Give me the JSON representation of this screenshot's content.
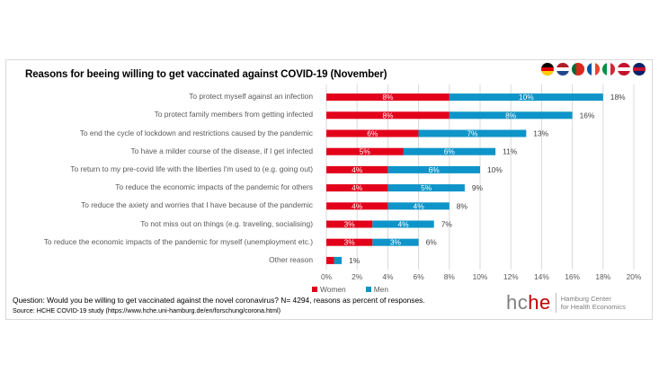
{
  "title": "Reasons for beeing willing to get vaccinated against COVID-19 (November)",
  "flags": [
    {
      "name": "germany",
      "stripes": "h",
      "colors": [
        "#000000",
        "#dd0000",
        "#ffce00"
      ]
    },
    {
      "name": "netherlands",
      "stripes": "h",
      "colors": [
        "#ae1c28",
        "#ffffff",
        "#21468b"
      ]
    },
    {
      "name": "portugal",
      "stripes": "v",
      "colors": [
        "#046a38",
        "#da291c",
        "#da291c"
      ]
    },
    {
      "name": "france",
      "stripes": "v",
      "colors": [
        "#0055a4",
        "#ffffff",
        "#ef4135"
      ]
    },
    {
      "name": "italy",
      "stripes": "v",
      "colors": [
        "#009246",
        "#ffffff",
        "#ce2b37"
      ]
    },
    {
      "name": "denmark",
      "stripes": "h",
      "colors": [
        "#c8102e",
        "#ffffff",
        "#c8102e"
      ]
    },
    {
      "name": "uk",
      "stripes": "h",
      "colors": [
        "#012169",
        "#c8102e",
        "#012169"
      ]
    }
  ],
  "colors": {
    "women": "#e2001a",
    "men": "#0e94c8",
    "grid": "#d9d9d9"
  },
  "chart_data": {
    "type": "bar",
    "orientation": "horizontal",
    "stacked": true,
    "title": "Reasons for beeing willing to get vaccinated against COVID-19 (November)",
    "categories": [
      "To protect myself against an infection",
      "To protect family members from getting infected",
      "To end the cycle of lockdown and restrictions caused by the pandemic",
      "To have a milder course of the disease, if I get infected",
      "To return to my pre-covid life with the liberties I'm used to (e.g. going out)",
      "To reduce the economic impacts of the pandemic for others",
      "To reduce the axiety and worries that I have because of the pandemic",
      "To not miss out on things (e.g. traveling, socialising)",
      "To reduce the economic impacts of the pandemic for myself (unemployment etc.)",
      "Other reason"
    ],
    "series": [
      {
        "name": "Women",
        "values": [
          8,
          8,
          6,
          5,
          4,
          4,
          4,
          3,
          3,
          0.5
        ],
        "labels": [
          "8%",
          "8%",
          "6%",
          "5%",
          "4%",
          "4%",
          "4%",
          "3%",
          "3%",
          ""
        ]
      },
      {
        "name": "Men",
        "values": [
          10,
          8,
          7,
          6,
          6,
          5,
          4,
          4,
          3,
          0.5
        ],
        "labels": [
          "10%",
          "8%",
          "7%",
          "6%",
          "6%",
          "5%",
          "4%",
          "4%",
          "3%",
          ""
        ]
      }
    ],
    "totals": [
      18,
      16,
      13,
      11,
      10,
      9,
      8,
      7,
      6,
      1
    ],
    "total_labels": [
      "18%",
      "16%",
      "13%",
      "11%",
      "10%",
      "9%",
      "8%",
      "7%",
      "6%",
      "1%"
    ],
    "xlabel": "",
    "ylabel": "",
    "xlim": [
      0,
      20
    ],
    "xticks": [
      "0%",
      "2%",
      "4%",
      "6%",
      "8%",
      "10%",
      "12%",
      "14%",
      "16%",
      "18%",
      "20%"
    ],
    "grid": true,
    "legend": {
      "position": "bottom-left",
      "entries": [
        "Women",
        "Men"
      ]
    }
  },
  "footer": {
    "question": "Question: Would you be willing to get vaccinated against the novel coronavirus? N= 4294, reasons as percent of responses.",
    "source": "Source: HCHE COVID-19 study (https://www.hche.uni-hamburg.de/en/forschung/corona.html)"
  },
  "logo": {
    "hc": "hc",
    "he": "he",
    "line1": "Hamburg Center",
    "line2": "for Health Economics"
  }
}
